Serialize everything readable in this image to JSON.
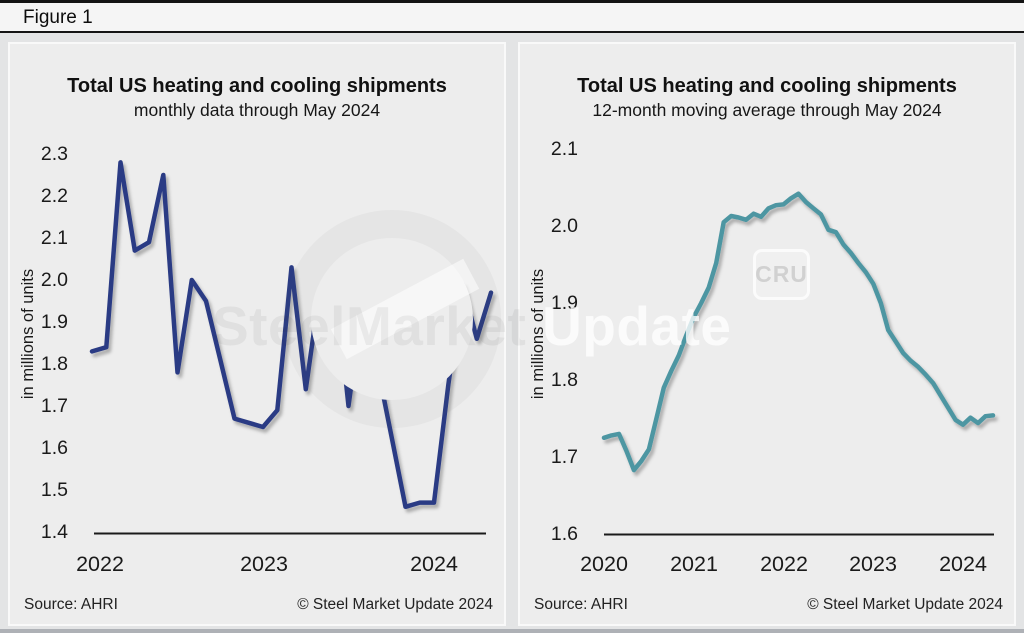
{
  "figure_label": "Figure 1",
  "panels": [
    {
      "title": "Total US heating and cooling shipments",
      "subtitle": "monthly data through May 2024",
      "ylabel": "in millions of units",
      "source": "Source: AHRI",
      "copyright": "© Steel Market Update 2024"
    },
    {
      "title": "Total US heating and cooling shipments",
      "subtitle": "12-month moving average through May 2024",
      "ylabel": "in millions of units",
      "source": "Source: AHRI",
      "copyright": "© Steel Market Update 2024"
    }
  ],
  "watermark": {
    "word1": "Steel",
    "word2": "Market",
    "word3": "Update",
    "cru_badge": "CRU"
  },
  "colors": {
    "left_line": "#2a3b84",
    "right_line": "#4e96a2",
    "axis": "#1a1a1a",
    "tick_text": "#1a1a1a"
  },
  "chart_data": [
    {
      "type": "line",
      "title": "Total US heating and cooling shipments",
      "subtitle": "monthly data through May 2024",
      "ylabel": "in millions of units",
      "frequency": "monthly",
      "x_start": "2022-01",
      "x_end": "2024-05",
      "x_tick_labels": [
        "2022",
        "2023",
        "2024"
      ],
      "y_ticks": [
        1.4,
        1.5,
        1.6,
        1.7,
        1.8,
        1.9,
        2.0,
        2.1,
        2.2,
        2.3
      ],
      "ylim": [
        1.4,
        2.3
      ],
      "grid": false,
      "legend": false,
      "line_color": "#2a3b84",
      "values": [
        1.83,
        1.84,
        2.28,
        2.07,
        2.09,
        2.25,
        1.78,
        2.0,
        1.95,
        1.81,
        1.67,
        1.66,
        1.65,
        1.69,
        2.03,
        1.74,
        1.98,
        2.02,
        1.7,
        1.95,
        1.8,
        1.63,
        1.46,
        1.47,
        1.47,
        1.75,
        1.99,
        1.86,
        1.97
      ]
    },
    {
      "type": "line",
      "title": "Total US heating and cooling shipments",
      "subtitle": "12-month moving average through May 2024",
      "ylabel": "in millions of units",
      "frequency": "monthly",
      "x_start": "2020-01",
      "x_end": "2024-05",
      "x_tick_labels": [
        "2020",
        "2021",
        "2022",
        "2023",
        "2024"
      ],
      "y_ticks": [
        1.6,
        1.7,
        1.8,
        1.9,
        2.0,
        2.1
      ],
      "ylim": [
        1.6,
        2.1
      ],
      "grid": false,
      "legend": false,
      "line_color": "#4e96a2",
      "values": [
        1.725,
        1.728,
        1.73,
        1.708,
        1.683,
        1.695,
        1.71,
        1.75,
        1.79,
        1.812,
        1.832,
        1.858,
        1.882,
        1.9,
        1.92,
        1.952,
        2.005,
        2.013,
        2.011,
        2.008,
        2.016,
        2.012,
        2.023,
        2.027,
        2.028,
        2.036,
        2.042,
        2.031,
        2.023,
        2.015,
        1.995,
        1.992,
        1.976,
        1.965,
        1.952,
        1.94,
        1.925,
        1.9,
        1.865,
        1.85,
        1.835,
        1.825,
        1.817,
        1.807,
        1.796,
        1.78,
        1.764,
        1.748,
        1.742,
        1.751,
        1.744,
        1.753,
        1.754
      ]
    }
  ]
}
